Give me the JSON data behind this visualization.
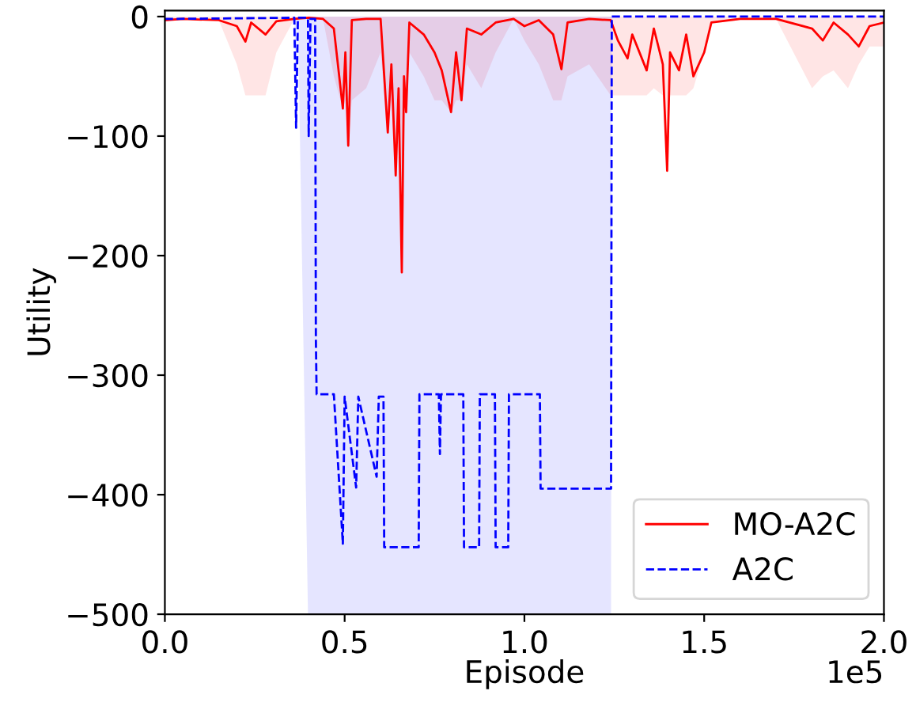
{
  "chart_data": {
    "type": "line",
    "xlabel": "Episode",
    "ylabel": "Utility",
    "xlim": [
      0.0,
      2.0
    ],
    "ylim": [
      -500,
      5
    ],
    "xticks": [
      {
        "value": 0,
        "label": "0.0"
      },
      0.5,
      {
        "value": 1,
        "label": "1.0"
      },
      1.5,
      {
        "value": 2,
        "label": "2.0"
      }
    ],
    "yticks": [
      -500,
      -400,
      -300,
      -200,
      -100,
      0
    ],
    "annotations": [
      "1e5"
    ],
    "grid": false,
    "legend": "bottom right",
    "series": [
      {
        "name": "MO-A2C",
        "color": "#ff0000",
        "line_style": "solid",
        "x": [
          0,
          0.05,
          0.15,
          0.2,
          0.224,
          0.24,
          0.28,
          0.31,
          0.36,
          0.4,
          0.44,
          0.47,
          0.495,
          0.502,
          0.51,
          0.52,
          0.56,
          0.6,
          0.62,
          0.63,
          0.642,
          0.65,
          0.659,
          0.665,
          0.671,
          0.68,
          0.72,
          0.75,
          0.77,
          0.796,
          0.81,
          0.825,
          0.84,
          0.88,
          0.92,
          0.97,
          1.0,
          1.04,
          1.08,
          1.103,
          1.12,
          1.18,
          1.24,
          1.26,
          1.287,
          1.3,
          1.34,
          1.36,
          1.385,
          1.397,
          1.405,
          1.43,
          1.45,
          1.47,
          1.5,
          1.52,
          1.6,
          1.7,
          1.8,
          1.83,
          1.86,
          1.9,
          1.93,
          1.96,
          2.0
        ],
        "values": [
          -3,
          -2,
          -3,
          -8,
          -21,
          -5,
          -15,
          -4,
          -2,
          -1,
          -2,
          -10,
          -77,
          -30,
          -108,
          -3,
          -2,
          -2,
          -97,
          -40,
          -133,
          -60,
          -214,
          -50,
          -80,
          -5,
          -15,
          -30,
          -45,
          -80,
          -30,
          -70,
          -10,
          -15,
          -5,
          -2,
          -8,
          -3,
          -15,
          -44,
          -5,
          -2,
          -3,
          -20,
          -35,
          -15,
          -45,
          -10,
          -40,
          -129,
          -30,
          -45,
          -15,
          -50,
          -30,
          -5,
          -2,
          -2,
          -10,
          -20,
          -5,
          -15,
          -25,
          -8,
          -5
        ],
        "lower": [
          -3,
          -2,
          -3,
          -40,
          -66,
          -66,
          -66,
          -30,
          -2,
          -1,
          -2,
          -50,
          -77,
          -70,
          -108,
          -70,
          -60,
          -30,
          -97,
          -70,
          -133,
          -70,
          -214,
          -70,
          -80,
          -30,
          -50,
          -70,
          -70,
          -80,
          -70,
          -70,
          -40,
          -60,
          -30,
          -2,
          -20,
          -40,
          -70,
          -70,
          -50,
          -40,
          -66,
          -66,
          -66,
          -66,
          -66,
          -60,
          -66,
          -129,
          -66,
          -66,
          -66,
          -60,
          -30,
          -5,
          -2,
          -2,
          -60,
          -50,
          -45,
          -60,
          -40,
          -25,
          -25
        ],
        "upper": [
          0,
          0,
          0,
          0,
          0,
          0,
          0,
          0,
          0,
          0,
          0,
          0,
          0,
          0,
          0,
          0,
          0,
          0,
          0,
          0,
          0,
          0,
          0,
          0,
          0,
          0,
          0,
          0,
          0,
          0,
          0,
          0,
          0,
          0,
          0,
          0,
          0,
          0,
          0,
          0,
          0,
          0,
          0,
          0,
          0,
          0,
          0,
          0,
          0,
          0,
          0,
          0,
          0,
          0,
          0,
          0,
          0,
          0,
          0,
          0,
          0,
          0,
          0,
          0,
          0
        ]
      },
      {
        "name": "A2C",
        "color": "#0000ff",
        "line_style": "dashed",
        "x": [
          0,
          0.36,
          0.365,
          0.37,
          0.398,
          0.4,
          0.405,
          0.418,
          0.42,
          0.422,
          0.47,
          0.495,
          0.5,
          0.532,
          0.538,
          0.589,
          0.595,
          0.608,
          0.61,
          0.706,
          0.708,
          0.762,
          0.765,
          0.768,
          0.83,
          0.832,
          0.874,
          0.876,
          0.918,
          0.92,
          0.955,
          0.957,
          1.043,
          1.045,
          1.241,
          1.243,
          2.0
        ],
        "values": [
          -2,
          -1,
          -93,
          -1,
          -1,
          -100,
          -2,
          -2,
          -270,
          -316,
          -316,
          -441,
          -318,
          -394,
          -318,
          -385,
          -318,
          -318,
          -444,
          -444,
          -316,
          -316,
          -366,
          -316,
          -316,
          -444,
          -444,
          -316,
          -316,
          -444,
          -444,
          -316,
          -316,
          -395,
          -395,
          0,
          0
        ],
        "lower": [
          -2,
          -1,
          -93,
          -1,
          -500,
          -500,
          -500,
          -500,
          -500,
          -500,
          -500,
          -500,
          -500,
          -500,
          -500,
          -500,
          -500,
          -500,
          -500,
          -500,
          -500,
          -500,
          -500,
          -500,
          -500,
          -500,
          -500,
          -500,
          -500,
          -500,
          -500,
          -500,
          -500,
          -500,
          -500,
          0,
          0
        ],
        "upper": [
          -2,
          -1,
          -1,
          -1,
          0,
          0,
          0,
          0,
          0,
          0,
          0,
          0,
          0,
          0,
          0,
          0,
          0,
          0,
          0,
          0,
          0,
          0,
          0,
          0,
          0,
          0,
          0,
          0,
          0,
          0,
          0,
          0,
          0,
          0,
          0,
          0,
          0
        ]
      }
    ]
  }
}
